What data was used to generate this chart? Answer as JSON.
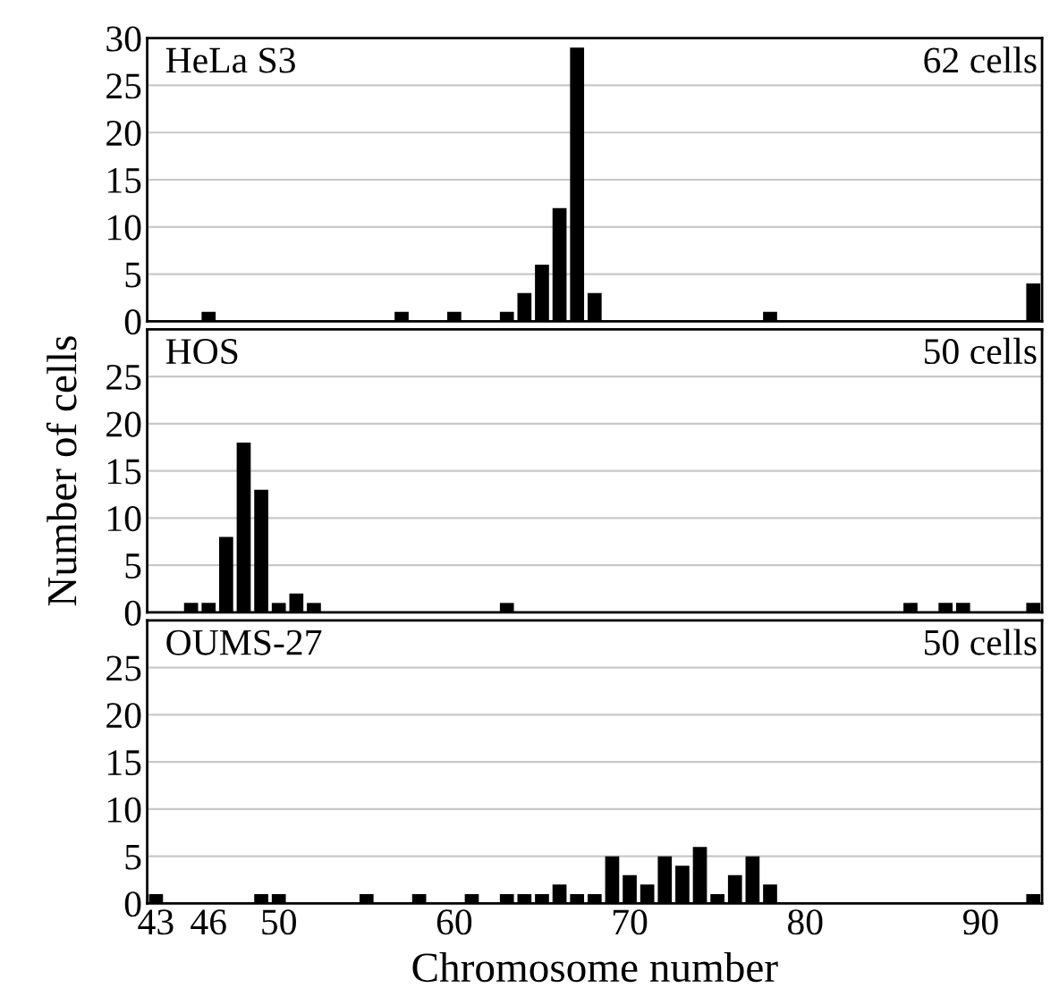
{
  "chart_data": [
    {
      "type": "bar",
      "title": "HeLa S3",
      "annotations": [
        "62 cells"
      ],
      "x": [
        46,
        57,
        60,
        63,
        64,
        65,
        66,
        67,
        68,
        78,
        93
      ],
      "series": [
        {
          "color": "#000000",
          "values": [
            1,
            1,
            1,
            1,
            3,
            6,
            12,
            29,
            3,
            1,
            4
          ]
        }
      ],
      "xlim": [
        42.5,
        93.5
      ],
      "ylim": [
        0,
        30
      ],
      "yticks": [
        0,
        5,
        10,
        15,
        20,
        25,
        30
      ],
      "grid": "y",
      "tick_labels": "y"
    },
    {
      "type": "bar",
      "title": "HOS",
      "annotations": [
        "50 cells"
      ],
      "ylabel": "Number of cells",
      "x": [
        45,
        46,
        47,
        48,
        49,
        50,
        51,
        52,
        63,
        86,
        88,
        89,
        93
      ],
      "series": [
        {
          "color": "#000000",
          "values": [
            1,
            1,
            8,
            18,
            13,
            1,
            2,
            1,
            1,
            1,
            1,
            1,
            1
          ]
        }
      ],
      "xlim": [
        42.5,
        93.5
      ],
      "ylim": [
        0,
        30
      ],
      "yticks": [
        0,
        5,
        10,
        15,
        20,
        25
      ],
      "grid": "y",
      "tick_labels": "y"
    },
    {
      "type": "bar",
      "title": "OUMS-27",
      "annotations": [
        "50 cells"
      ],
      "xlabel": "Chromosome number",
      "x": [
        43,
        49,
        50,
        55,
        58,
        61,
        63,
        64,
        65,
        66,
        67,
        68,
        69,
        70,
        71,
        72,
        73,
        74,
        75,
        76,
        77,
        78,
        93
      ],
      "series": [
        {
          "color": "#000000",
          "values": [
            1,
            1,
            1,
            1,
            1,
            1,
            1,
            1,
            1,
            2,
            1,
            1,
            5,
            3,
            2,
            5,
            4,
            6,
            1,
            3,
            5,
            2,
            1
          ]
        }
      ],
      "xlim": [
        42.5,
        93.5
      ],
      "xticks": [
        43,
        46,
        50,
        60,
        70,
        80,
        90
      ],
      "ylim": [
        0,
        30
      ],
      "yticks": [
        0,
        5,
        10,
        15,
        20,
        25
      ],
      "grid": "y"
    }
  ]
}
